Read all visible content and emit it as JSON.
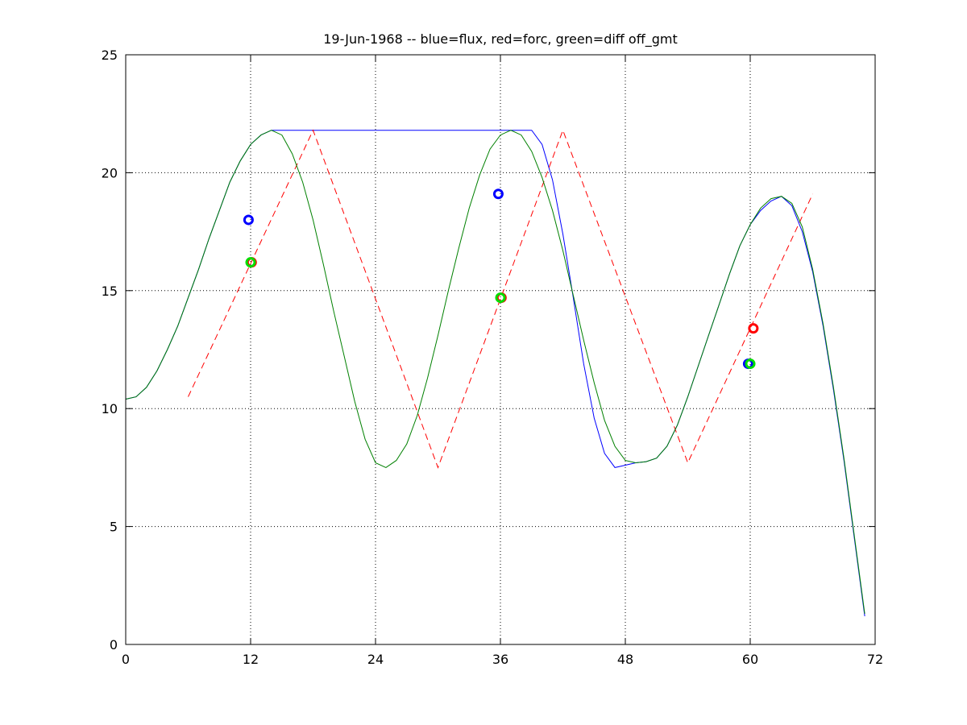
{
  "chart_data": {
    "type": "line",
    "title": "19-Jun-1968 -- blue=flux, red=forc, green=diff off_gmt",
    "xlabel": "",
    "ylabel": "",
    "xlim": [
      0,
      72
    ],
    "ylim": [
      0,
      25
    ],
    "xticks": [
      0,
      12,
      24,
      36,
      48,
      60,
      72
    ],
    "yticks": [
      0,
      5,
      10,
      15,
      20,
      25
    ],
    "grid": true,
    "series": [
      {
        "color": "#0000ff",
        "style": "solid",
        "x": [
          0,
          1,
          2,
          3,
          4,
          5,
          6,
          7,
          8,
          9,
          10,
          11,
          12,
          13,
          14,
          15,
          16,
          17,
          18,
          19,
          20,
          21,
          22,
          23,
          24,
          25,
          26,
          27,
          28,
          29,
          30,
          31,
          32,
          33,
          34,
          35,
          36,
          37,
          38,
          39,
          40,
          41,
          42,
          43,
          44,
          45,
          46,
          47,
          48,
          49,
          50,
          51,
          52,
          53,
          54,
          55,
          56,
          57,
          58,
          59,
          60,
          61,
          62,
          63,
          64,
          65,
          66,
          67,
          68,
          69,
          70,
          71
        ],
        "values": [
          10.4,
          10.5,
          10.9,
          11.6,
          12.5,
          13.5,
          14.7,
          15.9,
          17.2,
          18.4,
          19.6,
          20.5,
          21.2,
          21.6,
          21.8,
          21.8,
          21.8,
          21.8,
          21.8,
          21.8,
          21.8,
          21.8,
          21.8,
          21.8,
          21.8,
          21.8,
          21.8,
          21.8,
          21.8,
          21.8,
          21.8,
          21.8,
          21.8,
          21.8,
          21.8,
          21.8,
          21.8,
          21.8,
          21.8,
          21.8,
          21.2,
          19.7,
          17.4,
          14.7,
          11.9,
          9.6,
          8.1,
          7.5,
          7.6,
          7.7,
          7.75,
          7.9,
          8.4,
          9.3,
          10.5,
          11.8,
          13.1,
          14.4,
          15.7,
          16.9,
          17.8,
          18.4,
          18.8,
          19.0,
          18.6,
          17.5,
          15.8,
          13.5,
          10.8,
          7.8,
          4.5,
          1.2
        ]
      },
      {
        "color": "#ff0000",
        "style": "dashed",
        "x": [
          6,
          18,
          30,
          42,
          54,
          66
        ],
        "values": [
          10.5,
          21.8,
          7.5,
          21.8,
          7.7,
          19.1
        ]
      },
      {
        "color": "#008000",
        "style": "solid",
        "x": [
          0,
          1,
          2,
          3,
          4,
          5,
          6,
          7,
          8,
          9,
          10,
          11,
          12,
          13,
          14,
          15,
          16,
          17,
          18,
          19,
          20,
          21,
          22,
          23,
          24,
          25,
          26,
          27,
          28,
          29,
          30,
          31,
          32,
          33,
          34,
          35,
          36,
          37,
          38,
          39,
          40,
          41,
          42,
          43,
          44,
          45,
          46,
          47,
          48,
          49,
          50,
          51,
          52,
          53,
          54,
          55,
          56,
          57,
          58,
          59,
          60,
          61,
          62,
          63,
          64,
          65,
          66,
          67,
          68,
          69,
          70,
          71
        ],
        "values": [
          10.4,
          10.5,
          10.9,
          11.6,
          12.5,
          13.5,
          14.7,
          15.9,
          17.2,
          18.4,
          19.6,
          20.5,
          21.2,
          21.6,
          21.8,
          21.6,
          20.8,
          19.6,
          18.0,
          16.1,
          14.1,
          12.2,
          10.3,
          8.7,
          7.7,
          7.5,
          7.8,
          8.5,
          9.7,
          11.3,
          13.1,
          15.0,
          16.8,
          18.5,
          19.9,
          21.0,
          21.6,
          21.8,
          21.6,
          20.9,
          19.8,
          18.4,
          16.7,
          14.8,
          12.9,
          11.1,
          9.5,
          8.4,
          7.8,
          7.7,
          7.75,
          7.9,
          8.4,
          9.3,
          10.5,
          11.8,
          13.1,
          14.4,
          15.7,
          16.9,
          17.8,
          18.5,
          18.9,
          19.0,
          18.7,
          17.7,
          15.9,
          13.6,
          10.9,
          7.9,
          4.6,
          1.3
        ]
      }
    ],
    "markers": [
      {
        "x": 11.8,
        "y": 18.0,
        "color": "#0000ff"
      },
      {
        "x": 12.1,
        "y": 16.2,
        "color": "#ff0000"
      },
      {
        "x": 12.0,
        "y": 16.2,
        "color": "#00dd00"
      },
      {
        "x": 35.8,
        "y": 19.1,
        "color": "#0000ff"
      },
      {
        "x": 36.1,
        "y": 14.7,
        "color": "#ff0000"
      },
      {
        "x": 36.0,
        "y": 14.7,
        "color": "#00dd00"
      },
      {
        "x": 59.8,
        "y": 11.9,
        "color": "#0000ff"
      },
      {
        "x": 60.0,
        "y": 11.9,
        "color": "#00dd00"
      },
      {
        "x": 60.3,
        "y": 13.4,
        "color": "#ff0000"
      }
    ]
  }
}
